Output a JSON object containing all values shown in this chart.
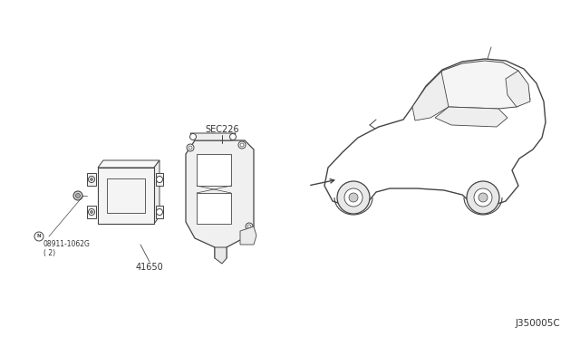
{
  "bg_color": "#ffffff",
  "diagram_id": "J350005C",
  "labels": {
    "sec226": "SEC226",
    "part41650": "41650",
    "bolt_label": "08911-1062G\n( 2)"
  },
  "line_color": "#444444",
  "text_color": "#333333",
  "font_size_label": 7,
  "font_size_id": 7.5
}
